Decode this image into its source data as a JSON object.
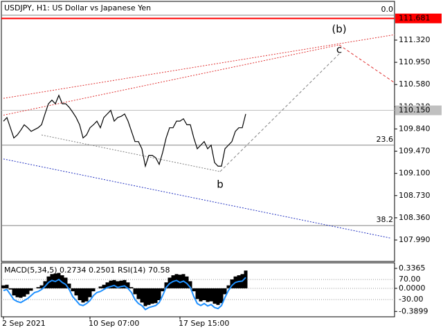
{
  "chart_data": [
    {
      "type": "line",
      "title": "USDJPY, H1:  US Dollar vs Japanese Yen",
      "categories": [
        "2 Sep 2021",
        null,
        null,
        null,
        null,
        null,
        null,
        null,
        null,
        null,
        null,
        null,
        null,
        null,
        null,
        null,
        null,
        null,
        null,
        null,
        null,
        null,
        null,
        null,
        null,
        "10 Sep 07:00",
        null,
        null,
        null,
        null,
        null,
        null,
        null,
        null,
        null,
        null,
        null,
        null,
        null,
        null,
        null,
        null,
        null,
        null,
        null,
        null,
        null,
        null,
        null,
        null,
        null,
        "17 Sep 15:00",
        null,
        null,
        null,
        null,
        null,
        null,
        null,
        null,
        null,
        null,
        null,
        null,
        null,
        null,
        null,
        null,
        null,
        null,
        null
      ],
      "series": [
        {
          "color": "#000000",
          "values": [
            109.97,
            110.03,
            109.86,
            109.69,
            109.74,
            109.82,
            109.91,
            109.86,
            109.8,
            109.83,
            109.86,
            109.91,
            110.09,
            110.26,
            110.32,
            110.26,
            110.4,
            110.26,
            110.26,
            110.2,
            110.12,
            110.03,
            109.91,
            109.69,
            109.74,
            109.86,
            109.91,
            109.97,
            109.86,
            110.03,
            110.09,
            110.15,
            109.97,
            110.03,
            110.05,
            110.09,
            109.97,
            109.8,
            109.63,
            109.63,
            109.51,
            109.22,
            109.4,
            109.4,
            109.36,
            109.25,
            109.45,
            109.69,
            109.86,
            109.86,
            109.97,
            109.97,
            110.01,
            109.91,
            109.91,
            109.69,
            109.51,
            109.57,
            109.63,
            109.51,
            109.57,
            109.28,
            109.22,
            109.22,
            109.51,
            109.57,
            109.63,
            109.8,
            109.86,
            109.86,
            110.09
          ]
        }
      ],
      "xlim": [
        -0.6,
        113
      ],
      "ylim": [
        107.633,
        111.965
      ],
      "yticks": [
        {
          "value": 111.32,
          "label": "111.320"
        },
        {
          "value": 110.95,
          "label": "110.950"
        },
        {
          "value": 110.58,
          "label": "110.580"
        },
        {
          "value": 110.21,
          "label": "110.210"
        },
        {
          "value": 109.84,
          "label": "109.840"
        },
        {
          "value": 109.47,
          "label": "109.470"
        },
        {
          "value": 109.1,
          "label": "109.100"
        },
        {
          "value": 108.73,
          "label": "108.730"
        },
        {
          "value": 108.36,
          "label": "108.360"
        },
        {
          "value": 107.99,
          "label": "107.990"
        }
      ],
      "price_lines": [
        {
          "value": 111.681,
          "color": "#ff0000"
        },
        {
          "value": 110.15,
          "label": "110.150",
          "color": "#c0c0c0"
        }
      ],
      "fib_levels": [
        {
          "label": "0.0",
          "price": 111.735
        },
        {
          "label": "23.6",
          "price": 109.57
        },
        {
          "label": "38.2",
          "price": 108.23
        }
      ],
      "trendlines": [
        {
          "x": [
            0,
            113
          ],
          "y": [
            110.35,
            111.41
          ],
          "color": "#e03030",
          "style": "dotted"
        },
        {
          "x": [
            0,
            97
          ],
          "y": [
            110.07,
            111.24
          ],
          "color": "#e03030",
          "style": "dotted"
        },
        {
          "x": [
            97,
            113
          ],
          "y": [
            111.24,
            110.61
          ],
          "color": "#e03030",
          "style": "dashed"
        },
        {
          "x": [
            62.6,
            97
          ],
          "y": [
            109.13,
            111.09
          ],
          "color": "#808080",
          "style": "dashed"
        },
        {
          "x": [
            11,
            62.6
          ],
          "y": [
            109.74,
            109.13
          ],
          "color": "#808080",
          "style": "dotted"
        },
        {
          "x": [
            0,
            112
          ],
          "y": [
            109.34,
            108.02
          ],
          "color": "#2030c0",
          "style": "dotted"
        }
      ],
      "annotations": [
        {
          "text": "(b)",
          "x": 97,
          "y": 111.5,
          "color": "#e00000"
        },
        {
          "text": "c",
          "x": 97,
          "y": 111.16,
          "color": "#808080"
        },
        {
          "text": "b",
          "x": 62.6,
          "y": 108.91,
          "color": "#808080"
        }
      ]
    },
    {
      "type": "macd",
      "title": "MACD(5,34,5) 0.2734 0.2501 RSI(14) 70.58",
      "ylim": [
        -0.48,
        0.43
      ],
      "yticks": [
        0.3365,
        {
          "value": 0,
          "label": "0.0000"
        },
        -0.3899
      ],
      "y2lim": [
        -116,
        153
      ],
      "y2ticks": [
        {
          "value": 70,
          "label": "70.00"
        },
        {
          "value": -30,
          "label": "-30.00"
        }
      ],
      "series": [
        {
          "type": "bar",
          "color": "#000000",
          "values": [
            0.05,
            0.06,
            -0.02,
            -0.12,
            -0.15,
            -0.16,
            -0.14,
            -0.1,
            -0.04,
            0.0,
            0.02,
            0.05,
            0.12,
            0.2,
            0.24,
            0.25,
            0.26,
            0.22,
            0.18,
            0.08,
            -0.05,
            -0.12,
            -0.2,
            -0.24,
            -0.22,
            -0.15,
            -0.05,
            0.0,
            0.03,
            0.06,
            0.1,
            0.13,
            0.14,
            0.12,
            0.13,
            0.14,
            0.1,
            0.02,
            -0.1,
            -0.18,
            -0.24,
            -0.3,
            -0.28,
            -0.26,
            -0.25,
            -0.2,
            -0.05,
            0.1,
            0.18,
            0.22,
            0.24,
            0.23,
            0.24,
            0.2,
            0.12,
            -0.05,
            -0.18,
            -0.22,
            -0.2,
            -0.23,
            -0.22,
            -0.26,
            -0.28,
            -0.25,
            -0.1,
            0.05,
            0.15,
            0.2,
            0.22,
            0.24,
            0.3
          ]
        },
        {
          "type": "line",
          "axis": "y2",
          "color": "#1e90ff",
          "values": [
            15,
            20,
            -5,
            -30,
            -40,
            -45,
            -35,
            -25,
            -10,
            5,
            10,
            20,
            35,
            55,
            65,
            60,
            70,
            55,
            45,
            20,
            -15,
            -35,
            -55,
            -60,
            -50,
            -35,
            -10,
            5,
            10,
            20,
            30,
            35,
            40,
            30,
            35,
            38,
            25,
            5,
            -30,
            -50,
            -60,
            -80,
            -70,
            -65,
            -60,
            -45,
            -10,
            30,
            50,
            60,
            65,
            55,
            62,
            50,
            30,
            -15,
            -50,
            -60,
            -50,
            -62,
            -55,
            -70,
            -75,
            -60,
            -20,
            15,
            40,
            55,
            60,
            62,
            80
          ]
        }
      ]
    }
  ]
}
